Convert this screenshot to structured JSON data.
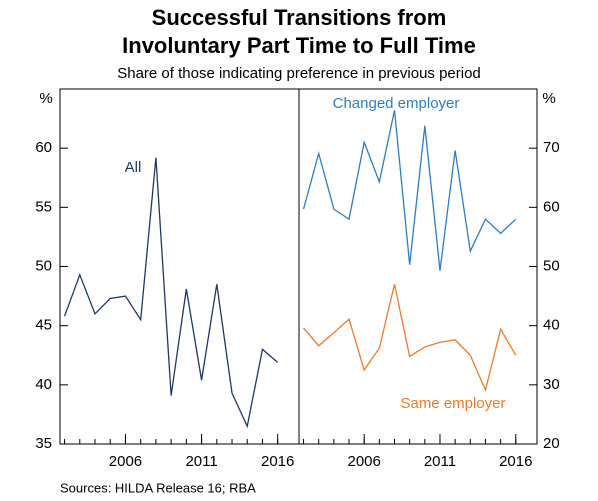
{
  "title": [
    "Successful Transitions from",
    "Involuntary Part Time to Full Time"
  ],
  "subtitle": "Share of those indicating preference in previous period",
  "source": "Sources:   HILDA Release 16; RBA",
  "chart_data": [
    {
      "type": "line",
      "ylabel": "%",
      "x": [
        2002,
        2003,
        2004,
        2005,
        2006,
        2007,
        2008,
        2009,
        2010,
        2011,
        2012,
        2013,
        2014,
        2015,
        2016
      ],
      "xlim": [
        2001.7,
        2017.4
      ],
      "xticks": [
        2006,
        2011,
        2016
      ],
      "ylim": [
        35,
        65
      ],
      "yticks": [
        35,
        40,
        45,
        50,
        55,
        60
      ],
      "series": [
        {
          "name": "All",
          "color": "#1f3864",
          "values": [
            45.8,
            49.3,
            46.0,
            47.3,
            47.5,
            45.5,
            59.2,
            39.1,
            48.1,
            40.4,
            48.5,
            39.3,
            36.5,
            43.0,
            41.9
          ]
        }
      ]
    },
    {
      "type": "line",
      "ylabel": "%",
      "x": [
        2002,
        2003,
        2004,
        2005,
        2006,
        2007,
        2008,
        2009,
        2010,
        2011,
        2012,
        2013,
        2014,
        2015,
        2016
      ],
      "xlim": [
        2001.7,
        2017.4
      ],
      "xticks": [
        2006,
        2011,
        2016
      ],
      "ylim": [
        20,
        80
      ],
      "yticks": [
        20,
        30,
        40,
        50,
        60,
        70
      ],
      "series": [
        {
          "name": "Changed employer",
          "color": "#2a7fc4",
          "values": [
            59.7,
            69.1,
            59.7,
            58.0,
            71.0,
            64.3,
            76.4,
            50.3,
            73.8,
            49.3,
            69.6,
            52.6,
            58.0,
            55.6,
            58.0
          ]
        },
        {
          "name": "Same employer",
          "color": "#f07a2a",
          "values": [
            39.6,
            36.6,
            38.8,
            41.1,
            32.5,
            36.2,
            47.0,
            34.8,
            36.4,
            37.2,
            37.6,
            35.0,
            29.1,
            39.4,
            35.0
          ]
        }
      ]
    }
  ]
}
